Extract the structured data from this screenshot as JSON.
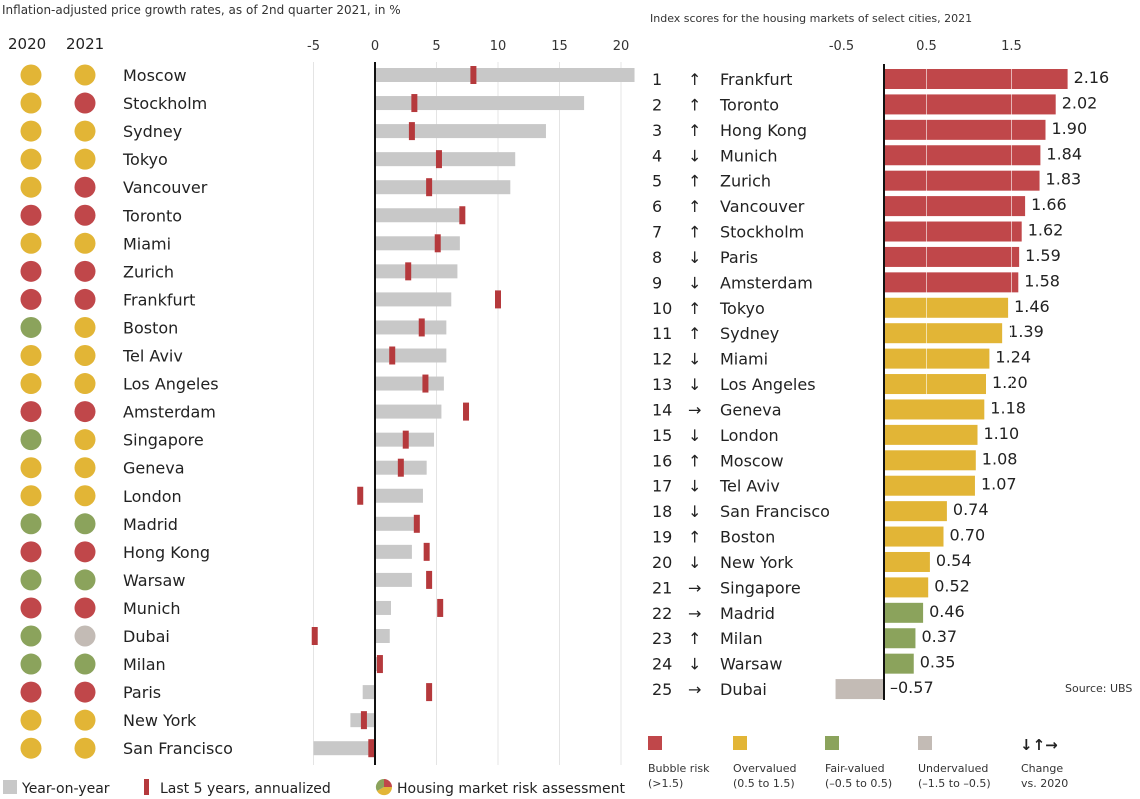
{
  "chart_data": [
    {
      "type": "bar",
      "orientation": "horizontal",
      "title": "Inflation-adjusted price growth rates, as of 2nd quarter 2021, in %",
      "xlim": [
        -5,
        21
      ],
      "xticks": [
        "-5",
        "0",
        "5",
        "10",
        "15",
        "20"
      ],
      "grid": true,
      "risk_columns": [
        "2020",
        "2021"
      ],
      "categories": [
        "Moscow",
        "Stockholm",
        "Sydney",
        "Tokyo",
        "Vancouver",
        "Toronto",
        "Miami",
        "Zurich",
        "Frankfurt",
        "Boston",
        "Tel Aviv",
        "Los Angeles",
        "Amsterdam",
        "Singapore",
        "Geneva",
        "London",
        "Madrid",
        "Hong Kong",
        "Warsaw",
        "Munich",
        "Dubai",
        "Milan",
        "Paris",
        "New York",
        "San Francisco"
      ],
      "series": [
        {
          "name": "Year-on-year",
          "color": "#c8c8c8",
          "values": [
            21.1,
            17.0,
            13.9,
            11.4,
            11.0,
            6.9,
            6.9,
            6.7,
            6.2,
            5.8,
            5.8,
            5.6,
            5.4,
            4.8,
            4.2,
            3.9,
            3.2,
            3.0,
            3.0,
            1.3,
            1.2,
            0.5,
            -1.0,
            -2.0,
            -5.0
          ]
        },
        {
          "name": "Last 5 years, annualized",
          "color": "#b5393c",
          "values": [
            8.0,
            3.2,
            3.0,
            5.2,
            4.4,
            7.1,
            5.1,
            2.7,
            10.0,
            3.8,
            1.4,
            4.1,
            7.4,
            2.5,
            2.1,
            -1.2,
            3.4,
            4.2,
            4.4,
            5.3,
            -4.9,
            0.4,
            4.4,
            -0.9,
            -0.3
          ]
        }
      ],
      "risk_2020": [
        "over",
        "over",
        "over",
        "over",
        "over",
        "bubble",
        "over",
        "bubble",
        "bubble",
        "fair",
        "over",
        "over",
        "bubble",
        "fair",
        "over",
        "over",
        "fair",
        "bubble",
        "fair",
        "bubble",
        "fair",
        "fair",
        "bubble",
        "over",
        "over"
      ],
      "risk_2021": [
        "over",
        "bubble",
        "over",
        "over",
        "bubble",
        "bubble",
        "over",
        "bubble",
        "bubble",
        "over",
        "over",
        "over",
        "bubble",
        "over",
        "over",
        "over",
        "fair",
        "bubble",
        "fair",
        "bubble",
        "under",
        "fair",
        "bubble",
        "over",
        "over"
      ],
      "legend": [
        "Year-on-year",
        "Last 5 years, annualized",
        "Housing market risk assessment"
      ],
      "legend_position": "bottom"
    },
    {
      "type": "bar",
      "orientation": "horizontal",
      "title": "Index scores for the housing markets of select cities, 2021",
      "xticks": [
        "-0.5",
        "0.5",
        "1.5"
      ],
      "xlim": [
        -0.6,
        2.2
      ],
      "ranks": [
        "1",
        "2",
        "3",
        "4",
        "5",
        "6",
        "7",
        "8",
        "9",
        "10",
        "11",
        "12",
        "13",
        "14",
        "15",
        "16",
        "17",
        "18",
        "19",
        "20",
        "21",
        "22",
        "23",
        "24",
        "25"
      ],
      "changes": [
        "up",
        "up",
        "up",
        "down",
        "up",
        "up",
        "up",
        "down",
        "down",
        "up",
        "up",
        "down",
        "down",
        "right",
        "down",
        "up",
        "down",
        "down",
        "up",
        "down",
        "right",
        "right",
        "up",
        "down",
        "right"
      ],
      "categories": [
        "Frankfurt",
        "Toronto",
        "Hong Kong",
        "Munich",
        "Zurich",
        "Vancouver",
        "Stockholm",
        "Paris",
        "Amsterdam",
        "Tokyo",
        "Sydney",
        "Miami",
        "Los Angeles",
        "Geneva",
        "London",
        "Moscow",
        "Tel Aviv",
        "San Francisco",
        "Boston",
        "New York",
        "Singapore",
        "Madrid",
        "Milan",
        "Warsaw",
        "Dubai"
      ],
      "values": [
        2.16,
        2.02,
        1.9,
        1.84,
        1.83,
        1.66,
        1.62,
        1.59,
        1.58,
        1.46,
        1.39,
        1.24,
        1.2,
        1.18,
        1.1,
        1.08,
        1.07,
        0.74,
        0.7,
        0.54,
        0.52,
        0.46,
        0.37,
        0.35,
        -0.57
      ],
      "value_labels": [
        "2.16",
        "2.02",
        "1.90",
        "1.84",
        "1.83",
        "1.66",
        "1.62",
        "1.59",
        "1.58",
        "1.46",
        "1.39",
        "1.24",
        "1.20",
        "1.18",
        "1.10",
        "1.08",
        "1.07",
        "0.74",
        "0.70",
        "0.54",
        "0.52",
        "0.46",
        "0.37",
        "0.35",
        "–0.57"
      ],
      "source": "Source: UBS",
      "legend": [
        {
          "key": "bubble",
          "label": "Bubble risk",
          "range": "(>1.5)",
          "color": "#c0474a"
        },
        {
          "key": "over",
          "label": "Overvalued",
          "range": "(0.5 to 1.5)",
          "color": "#e2b536"
        },
        {
          "key": "fair",
          "label": "Fair-valued",
          "range": "(–0.5 to 0.5)",
          "color": "#8ba35c"
        },
        {
          "key": "under",
          "label": "Undervalued",
          "range": "(–1.5 to –0.5)",
          "color": "#c3bbb5"
        }
      ],
      "change_legend": {
        "arrows": "↓↑→",
        "label": "Change",
        "sub": "vs. 2020"
      }
    }
  ]
}
